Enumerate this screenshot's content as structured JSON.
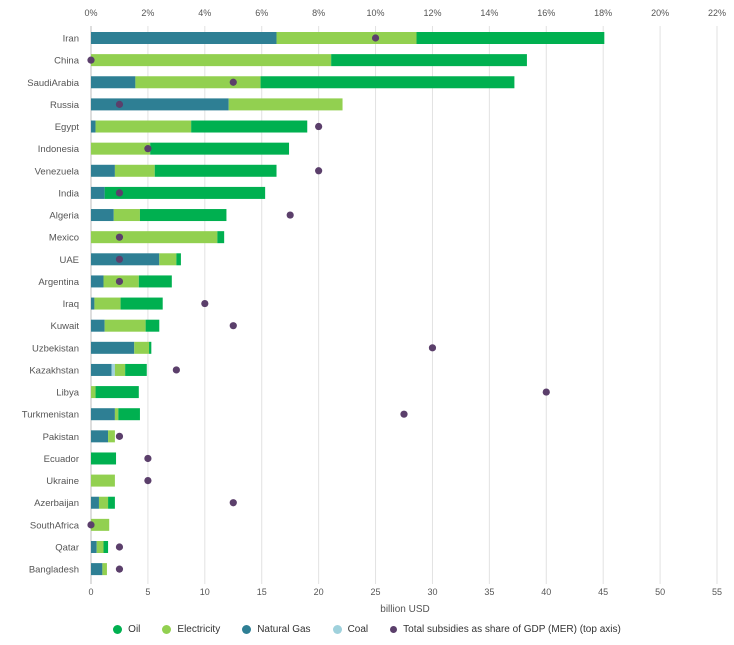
{
  "chart_data": {
    "type": "bar",
    "orientation": "horizontal",
    "stacked": true,
    "xlabel": "billion USD",
    "xlim": [
      0,
      55
    ],
    "x_ticks": [
      "0",
      "5",
      "10",
      "15",
      "20",
      "25",
      "30",
      "35",
      "40",
      "45",
      "50",
      "55"
    ],
    "x_tick_values": [
      0,
      5,
      10,
      15,
      20,
      25,
      30,
      35,
      40,
      45,
      50,
      55
    ],
    "top_axis_label": "Total subsidies as share of GDP (MER)",
    "top_xlim": [
      0,
      22
    ],
    "top_ticks": [
      "0%",
      "2%",
      "4%",
      "6%",
      "8%",
      "10%",
      "12%",
      "14%",
      "16%",
      "18%",
      "20%",
      "22%"
    ],
    "top_tick_values": [
      0,
      2,
      4,
      6,
      8,
      10,
      12,
      14,
      16,
      18,
      20,
      22
    ],
    "grid": true,
    "legend_position": "bottom",
    "categories": [
      "Iran",
      "China",
      "SaudiArabia",
      "Russia",
      "Egypt",
      "Indonesia",
      "Venezuela",
      "India",
      "Algeria",
      "Mexico",
      "UAE",
      "Argentina",
      "Iraq",
      "Kuwait",
      "Uzbekistan",
      "Kazakhstan",
      "Libya",
      "Turkmenistan",
      "Pakistan",
      "Ecuador",
      "Ukraine",
      "Azerbaijan",
      "SouthAfrica",
      "Qatar",
      "Bangladesh"
    ],
    "series": [
      {
        "name": "Natural Gas",
        "color": "#2e7f94",
        "values": [
          16.3,
          0,
          3.9,
          12.1,
          0.4,
          0,
          2.1,
          1.2,
          2.0,
          0,
          6.0,
          1.1,
          0.3,
          1.2,
          3.8,
          1.8,
          0,
          2.1,
          1.5,
          0,
          0,
          0.7,
          0,
          0.5,
          1.0
        ]
      },
      {
        "name": "Coal",
        "color": "#9fd1dc",
        "values": [
          0,
          0,
          0,
          0,
          0,
          0,
          0,
          0,
          0,
          0,
          0,
          0,
          0,
          0,
          0,
          0.3,
          0,
          0,
          0,
          0,
          0,
          0,
          0,
          0,
          0
        ]
      },
      {
        "name": "Electricity",
        "color": "#92d050",
        "values": [
          12.3,
          21.1,
          11.0,
          10.0,
          8.4,
          5.2,
          3.5,
          0,
          2.3,
          11.1,
          1.5,
          3.1,
          2.3,
          3.6,
          1.3,
          0.9,
          0.4,
          0.3,
          0.6,
          0,
          2.1,
          0.8,
          1.6,
          0.6,
          0.4
        ]
      },
      {
        "name": "Oil",
        "color": "#00b050",
        "values": [
          16.5,
          17.2,
          22.3,
          0,
          10.2,
          12.2,
          10.7,
          14.1,
          7.6,
          0.6,
          0.4,
          2.9,
          3.7,
          1.2,
          0.2,
          1.9,
          3.8,
          1.9,
          0,
          2.2,
          0,
          0.6,
          0,
          0.4,
          0
        ]
      }
    ],
    "share_of_gdp_pct": {
      "name": "Total subsidies as share of GDP (MER) (top axis)",
      "color": "#5b3f6b",
      "values": [
        10.0,
        0.0,
        5.0,
        1.0,
        8.0,
        2.0,
        8.0,
        1.0,
        7.0,
        1.0,
        1.0,
        1.0,
        4.0,
        5.0,
        12.0,
        3.0,
        16.0,
        11.0,
        1.0,
        2.0,
        2.0,
        5.0,
        0.0,
        1.0,
        1.0
      ]
    }
  },
  "legend": [
    {
      "label": "Oil",
      "color": "#00b050",
      "kind": "dot"
    },
    {
      "label": "Electricity",
      "color": "#92d050",
      "kind": "dot"
    },
    {
      "label": "Natural Gas",
      "color": "#2e7f94",
      "kind": "dot"
    },
    {
      "label": "Coal",
      "color": "#9fd1dc",
      "kind": "dot"
    },
    {
      "label": "Total subsidies as share of GDP (MER) (top axis)",
      "color": "#5b3f6b",
      "kind": "small-dot"
    }
  ]
}
